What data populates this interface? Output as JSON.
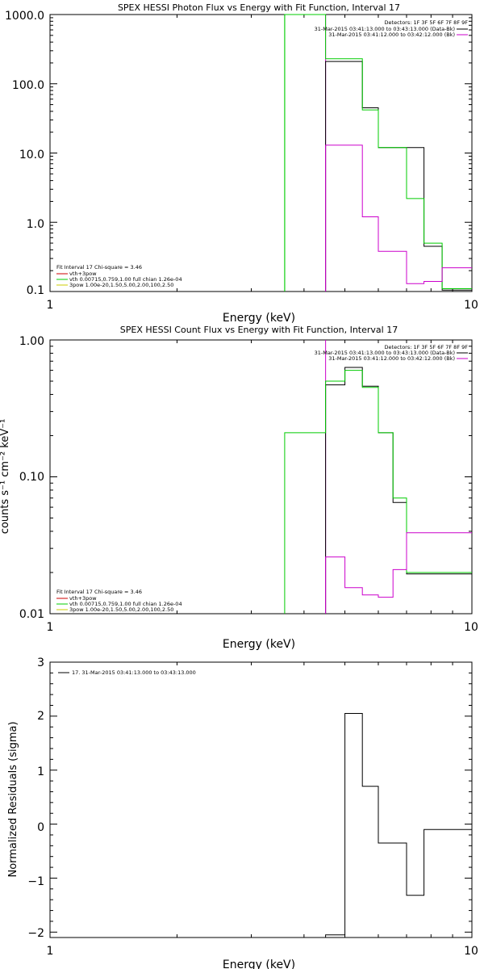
{
  "chart_data": [
    {
      "type": "line",
      "title": "SPEX HESSI Photon Flux vs Energy with Fit Function, Interval 17",
      "xlabel": "Energy (keV)",
      "ylabel": "",
      "xscale": "log",
      "yscale": "log",
      "xlim": [
        1,
        10
      ],
      "ylim": [
        0.1,
        1000
      ],
      "xticks": [
        {
          "v": 1,
          "label": "1"
        },
        {
          "v": 10,
          "label": "10"
        }
      ],
      "yticks": [
        {
          "v": 0.1,
          "label": "0.1"
        },
        {
          "v": 1,
          "label": "1.0"
        },
        {
          "v": 10,
          "label": "10.0"
        },
        {
          "v": 100,
          "label": "100.0"
        },
        {
          "v": 1000,
          "label": "1000.0"
        }
      ],
      "detectors_text": "Detectors: 1F 3F 5F 6F 7F 8F 9F",
      "time_entries": [
        {
          "text": "31-Mar-2015 03:41:13.000 to 03:43:13.000 (Data-Bk)",
          "color": "#000000"
        },
        {
          "text": "31-Mar-2015 03:41:12.000 to 03:42:12.000 (Bk)",
          "color": "#cc00cc"
        }
      ],
      "legend_lines": [
        {
          "text": "Fit Interval 17    Chi-square = 3.46",
          "color": "#000000"
        },
        {
          "text": "vth+3pow",
          "color": "#cc0000"
        },
        {
          "text": "vth 0.00715,0.759,1.00   full chian 1.26e-04",
          "color": "#00cc00"
        },
        {
          "text": "3pow 1.00e-20,1.50,5.00,2.00,100,2.50",
          "color": "#cccc00"
        }
      ],
      "series": [
        {
          "role": "data-bk",
          "color": "#000000",
          "edges": [
            4.5,
            5,
            5.5,
            6,
            6.5,
            7,
            7.7,
            8.5,
            10
          ],
          "values": [
            210,
            210,
            45,
            12,
            12,
            12,
            0.45,
            0.105
          ]
        },
        {
          "role": "fit",
          "color": "#00cc00",
          "edges": [
            3.6,
            4.5,
            5,
            5.5,
            6,
            6.5,
            7,
            7.7,
            8.5,
            10
          ],
          "values": [
            1000,
            230,
            230,
            42,
            12,
            12,
            2.2,
            0.5,
            0.11
          ]
        },
        {
          "role": "bk",
          "color": "#cc00cc",
          "edges": [
            4.5,
            5,
            5.5,
            6,
            6.5,
            7,
            7.7,
            8.5,
            10
          ],
          "values": [
            13,
            13,
            1.2,
            0.38,
            0.38,
            0.13,
            0.14,
            0.22
          ]
        }
      ],
      "vlines": [
        {
          "x": 3.6,
          "color": "#00cc00"
        },
        {
          "x": 4.5,
          "color": "#cc00cc"
        }
      ]
    },
    {
      "type": "line",
      "title": "SPEX HESSI Count Flux vs Energy with Fit Function, Interval 17",
      "xlabel": "Energy (keV)",
      "ylabel": "counts s⁻¹ cm⁻² keV⁻¹",
      "xscale": "log",
      "yscale": "log",
      "xlim": [
        1,
        10
      ],
      "ylim": [
        0.01,
        1
      ],
      "xticks": [
        {
          "v": 1,
          "label": "1"
        },
        {
          "v": 10,
          "label": "10"
        }
      ],
      "yticks": [
        {
          "v": 0.01,
          "label": "0.01"
        },
        {
          "v": 0.1,
          "label": "0.10"
        },
        {
          "v": 1,
          "label": "1.00"
        }
      ],
      "detectors_text": "Detectors: 1F 3F 5F 6F 7F 8F 9F",
      "time_entries": [
        {
          "text": "31-Mar-2015 03:41:13.000 to 03:43:13.000 (Data-Bk)",
          "color": "#000000"
        },
        {
          "text": "31-Mar-2015 03:41:12.000 to 03:42:12.000 (Bk)",
          "color": "#cc00cc"
        }
      ],
      "legend_lines": [
        {
          "text": "Fit Interval 17    Chi-square = 3.46",
          "color": "#000000"
        },
        {
          "text": "vth+3pow",
          "color": "#cc0000"
        },
        {
          "text": "vth 0.00715,0.759,1.00   full chian 1.26e-04",
          "color": "#00cc00"
        },
        {
          "text": "3pow 1.00e-20,1.50,5.00,2.00,100,2.50",
          "color": "#cccc00"
        }
      ],
      "series": [
        {
          "role": "data-bk",
          "color": "#000000",
          "edges": [
            4.5,
            5,
            5.5,
            6,
            6.5,
            7,
            7.7,
            8.5,
            10
          ],
          "values": [
            0.47,
            0.63,
            0.46,
            0.21,
            0.065,
            0.0195,
            0.0195,
            0.0195
          ]
        },
        {
          "role": "fit",
          "color": "#00cc00",
          "edges": [
            3.6,
            4.5,
            5,
            5.5,
            6,
            6.5,
            7,
            7.7,
            8.5,
            10
          ],
          "values": [
            0.21,
            0.5,
            0.6,
            0.45,
            0.21,
            0.07,
            0.02,
            0.02,
            0.02
          ]
        },
        {
          "role": "bk",
          "color": "#cc00cc",
          "edges": [
            4.5,
            5,
            5.5,
            6,
            6.5,
            7,
            7.7,
            8.5,
            10
          ],
          "values": [
            0.026,
            0.0155,
            0.0137,
            0.0132,
            0.021,
            0.039,
            0.039,
            0.039
          ]
        }
      ],
      "vlines": [
        {
          "x": 4.5,
          "color": "#cc00cc"
        }
      ]
    },
    {
      "type": "line",
      "title": "",
      "xlabel": "Energy (keV)",
      "ylabel": "Normalized Residuals (sigma)",
      "xscale": "log",
      "yscale": "linear",
      "xlim": [
        1,
        10
      ],
      "ylim": [
        -2.1,
        3
      ],
      "xticks": [
        {
          "v": 1,
          "label": "1"
        },
        {
          "v": 10,
          "label": "10"
        }
      ],
      "yticks": [
        {
          "v": -2,
          "label": "−2"
        },
        {
          "v": -1,
          "label": "−1"
        },
        {
          "v": 0,
          "label": "0"
        },
        {
          "v": 1,
          "label": "1"
        },
        {
          "v": 2,
          "label": "2"
        },
        {
          "v": 3,
          "label": "3"
        }
      ],
      "legend_lines": [
        {
          "text": "17. 31-Mar-2015 03:41:13.000 to 03:43:13.000",
          "color": "#000000"
        }
      ],
      "series": [
        {
          "role": "residuals",
          "color": "#000000",
          "edges": [
            4.5,
            5,
            5.5,
            6,
            6.5,
            7,
            7.7,
            8.5,
            10
          ],
          "values": [
            -2.05,
            2.05,
            0.7,
            -0.35,
            -0.35,
            -1.32,
            -0.1,
            -0.1
          ]
        }
      ],
      "vlines": []
    }
  ]
}
